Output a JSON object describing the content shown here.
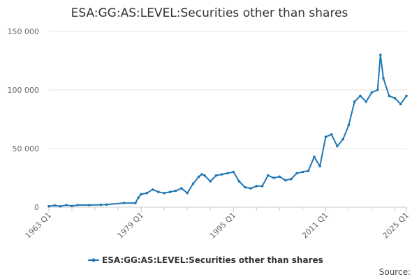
{
  "chart_data": {
    "type": "line",
    "title": "ESA:GG:AS:LEVEL:Securities other than shares",
    "xlabel": "",
    "ylabel": "",
    "x_tick_labels": [
      "1963 Q1",
      "1979 Q1",
      "1995 Q1",
      "2011 Q1",
      "2025 Q1"
    ],
    "x_tick_years": [
      1963,
      1979,
      1995,
      2011,
      2025
    ],
    "xlim": [
      1963,
      2025
    ],
    "y_tick_labels": [
      "0",
      "50 000",
      "100 000",
      "150 000"
    ],
    "y_tick_values": [
      0,
      50000,
      100000,
      150000
    ],
    "ylim": [
      0,
      150000
    ],
    "grid": true,
    "legend_position": "bottom",
    "line_color": "#1f77b4",
    "series": [
      {
        "name": "ESA:GG:AS:LEVEL:Securities other than shares",
        "x": [
          1963,
          1964,
          1965,
          1966,
          1967,
          1968,
          1970,
          1972,
          1973,
          1976,
          1978,
          1978.5,
          1979,
          1980,
          1981,
          1982,
          1983,
          1984,
          1985,
          1986,
          1987,
          1988,
          1989,
          1989.5,
          1990,
          1991,
          1992,
          1993,
          1994,
          1995,
          1996,
          1997,
          1998,
          1999,
          2000,
          2001,
          2002,
          2003,
          2004,
          2005,
          2006,
          2007,
          2008,
          2009,
          2010,
          2011,
          2012,
          2013,
          2014,
          2015,
          2016,
          2017,
          2018,
          2019,
          2020,
          2020.5,
          2021,
          2022,
          2023,
          2024,
          2025
        ],
        "values": [
          800,
          1500,
          800,
          1800,
          1000,
          1800,
          1800,
          2000,
          2200,
          3500,
          3500,
          8000,
          11000,
          12000,
          15000,
          13000,
          12000,
          13000,
          14000,
          16000,
          12000,
          20000,
          26000,
          28000,
          27000,
          22000,
          27000,
          28000,
          29000,
          30000,
          22000,
          17000,
          16000,
          18000,
          18000,
          27000,
          25000,
          26000,
          23000,
          24000,
          29000,
          30000,
          31000,
          43000,
          35000,
          60000,
          62000,
          52000,
          58000,
          70000,
          90000,
          95000,
          90000,
          98000,
          100000,
          130000,
          110000,
          95000,
          93000,
          88000,
          95000
        ]
      }
    ]
  },
  "footer": {
    "source_label": "Source:"
  }
}
